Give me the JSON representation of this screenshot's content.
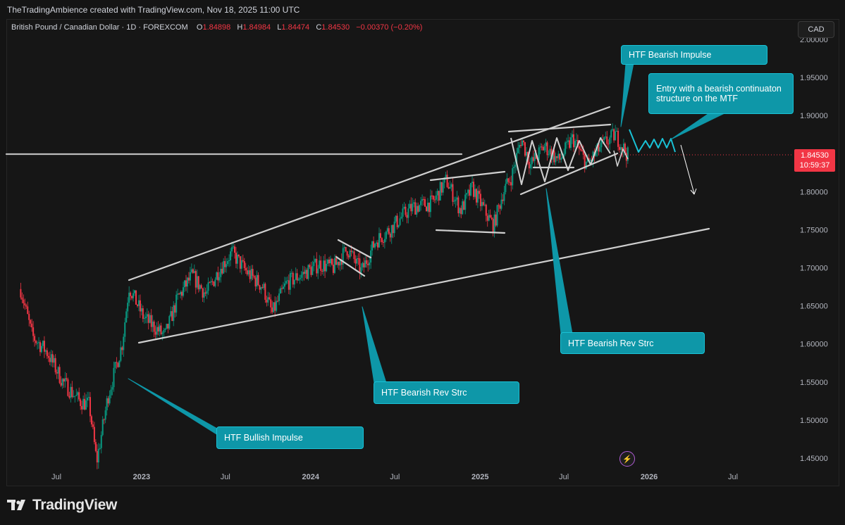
{
  "header": {
    "created_by": "TheTradingAmbience created with TradingView.com, Nov 18, 2025 11:00 UTC"
  },
  "symbol": {
    "name": "British Pound / Canadian Dollar · 1D · FOREXCOM",
    "open_label": "O",
    "open": "1.84898",
    "high_label": "H",
    "high": "1.84984",
    "low_label": "L",
    "low": "1.84474",
    "close_label": "C",
    "close": "1.84530",
    "change": "−0.00370 (−0.20%)"
  },
  "currency_button": "CAD",
  "price_tag": {
    "price": "1.84530",
    "countdown": "10:59:37",
    "color": "#f23645"
  },
  "annotations": {
    "htf_bearish_impulse": "HTF Bearish Impulse",
    "entry_note": "Entry with a bearish continuaton structure on the MTF",
    "htf_bearish_rev_strc_right": "HTF Bearish Rev Strc",
    "htf_bearish_rev_strc_mid": "HTF Bearish Rev Strc",
    "htf_bullish_impulse": "HTF Bullish Impulse"
  },
  "brand": {
    "name": "TradingView"
  },
  "colors": {
    "callout": "#0e97a8",
    "up": "#089981",
    "down": "#f23645",
    "lines": "#cfcfcf"
  },
  "chart_data": {
    "type": "candlestick",
    "y_axis": {
      "min": 1.43,
      "max": 2.0,
      "ticks": [
        "1.45000",
        "1.50000",
        "1.55000",
        "1.60000",
        "1.65000",
        "1.70000",
        "1.75000",
        "1.80000",
        "1.85000",
        "1.90000",
        "1.95000",
        "2.00000"
      ],
      "tick_values": [
        1.45,
        1.5,
        1.55,
        1.6,
        1.65,
        1.7,
        1.75,
        1.8,
        1.85,
        1.9,
        1.95,
        2.0
      ]
    },
    "x_axis": {
      "labels": [
        "Jul",
        "2023",
        "Jul",
        "2024",
        "Jul",
        "2025",
        "Jul",
        "2026",
        "Jul"
      ],
      "label_dates": [
        "2022-07-01",
        "2023-01-01",
        "2023-07-01",
        "2024-01-01",
        "2024-07-01",
        "2025-01-01",
        "2025-07-01",
        "2026-01-01",
        "2026-07-01"
      ]
    },
    "price_path": [
      [
        "2022-04-15",
        1.672
      ],
      [
        "2022-05-10",
        1.61
      ],
      [
        "2022-06-10",
        1.59
      ],
      [
        "2022-07-15",
        1.55
      ],
      [
        "2022-08-20",
        1.525
      ],
      [
        "2022-09-10",
        1.52
      ],
      [
        "2022-09-26",
        1.445
      ],
      [
        "2022-10-20",
        1.53
      ],
      [
        "2022-11-20",
        1.6
      ],
      [
        "2022-12-05",
        1.675
      ],
      [
        "2023-01-05",
        1.635
      ],
      [
        "2023-02-20",
        1.61
      ],
      [
        "2023-03-20",
        1.66
      ],
      [
        "2023-04-20",
        1.69
      ],
      [
        "2023-05-20",
        1.665
      ],
      [
        "2023-06-20",
        1.7
      ],
      [
        "2023-07-15",
        1.72
      ],
      [
        "2023-08-15",
        1.695
      ],
      [
        "2023-09-20",
        1.675
      ],
      [
        "2023-10-10",
        1.64
      ],
      [
        "2023-11-10",
        1.68
      ],
      [
        "2023-12-10",
        1.69
      ],
      [
        "2024-01-20",
        1.705
      ],
      [
        "2024-02-20",
        1.7
      ],
      [
        "2024-03-20",
        1.725
      ],
      [
        "2024-04-20",
        1.695
      ],
      [
        "2024-05-20",
        1.735
      ],
      [
        "2024-06-20",
        1.75
      ],
      [
        "2024-07-20",
        1.77
      ],
      [
        "2024-08-10",
        1.78
      ],
      [
        "2024-09-20",
        1.785
      ],
      [
        "2024-10-20",
        1.815
      ],
      [
        "2024-11-20",
        1.775
      ],
      [
        "2024-12-15",
        1.805
      ],
      [
        "2025-01-15",
        1.77
      ],
      [
        "2025-01-30",
        1.755
      ],
      [
        "2025-02-20",
        1.8
      ],
      [
        "2025-03-10",
        1.82
      ],
      [
        "2025-03-31",
        1.87
      ],
      [
        "2025-04-20",
        1.835
      ],
      [
        "2025-05-20",
        1.86
      ],
      [
        "2025-06-20",
        1.84
      ],
      [
        "2025-07-20",
        1.87
      ],
      [
        "2025-08-20",
        1.835
      ],
      [
        "2025-09-20",
        1.86
      ],
      [
        "2025-10-20",
        1.875
      ],
      [
        "2025-11-18",
        1.8453
      ]
    ],
    "last_price": 1.8453
  }
}
